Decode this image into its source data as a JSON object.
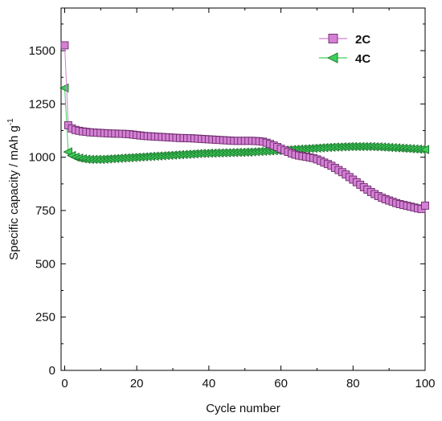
{
  "chart_data": {
    "type": "scatter",
    "xlabel": "Cycle number",
    "ylabel_main": "Specific capacity / mAh g",
    "ylabel_sup": "-1",
    "xlim": [
      -1,
      100
    ],
    "ylim": [
      0,
      1700
    ],
    "xticks": [
      0,
      20,
      40,
      60,
      80,
      100
    ],
    "yticks": [
      0,
      250,
      500,
      750,
      1000,
      1250,
      1500
    ],
    "legend_position": "top-right",
    "series": [
      {
        "name": "2C",
        "color": "#d580d5",
        "stroke": "#6a2a6a",
        "marker": "square",
        "x": [
          0,
          1,
          2,
          3,
          4,
          5,
          6,
          7,
          8,
          9,
          10,
          11,
          12,
          13,
          14,
          15,
          16,
          17,
          18,
          19,
          20,
          21,
          22,
          23,
          24,
          25,
          26,
          27,
          28,
          29,
          30,
          31,
          32,
          33,
          34,
          35,
          36,
          37,
          38,
          39,
          40,
          41,
          42,
          43,
          44,
          45,
          46,
          47,
          48,
          49,
          50,
          51,
          52,
          53,
          54,
          55,
          56,
          57,
          58,
          59,
          60,
          61,
          62,
          63,
          64,
          65,
          66,
          67,
          68,
          69,
          70,
          71,
          72,
          73,
          74,
          75,
          76,
          77,
          78,
          79,
          80,
          81,
          82,
          83,
          84,
          85,
          86,
          87,
          88,
          89,
          90,
          91,
          92,
          93,
          94,
          95,
          96,
          97,
          98,
          99,
          100
        ],
        "y": [
          1525,
          1150,
          1135,
          1128,
          1124,
          1121,
          1119,
          1117,
          1116,
          1115,
          1114,
          1113,
          1112,
          1111,
          1111,
          1110,
          1110,
          1109,
          1108,
          1106,
          1104,
          1102,
          1100,
          1099,
          1098,
          1097,
          1096,
          1095,
          1094,
          1093,
          1092,
          1091,
          1090,
          1090,
          1089,
          1089,
          1088,
          1087,
          1086,
          1085,
          1084,
          1083,
          1082,
          1081,
          1080,
          1079,
          1078,
          1077,
          1077,
          1077,
          1077,
          1077,
          1077,
          1076,
          1075,
          1073,
          1068,
          1062,
          1055,
          1048,
          1040,
          1032,
          1025,
          1018,
          1012,
          1008,
          1005,
          1002,
          999,
          996,
          990,
          983,
          975,
          968,
          960,
          950,
          940,
          930,
          919,
          907,
          895,
          883,
          871,
          859,
          848,
          837,
          827,
          818,
          810,
          803,
          797,
          791,
          785,
          780,
          776,
          772,
          768,
          764,
          760,
          757,
          773
        ]
      },
      {
        "name": "4C",
        "color": "#3ecf5a",
        "stroke": "#1a6e2a",
        "marker": "triangle-left",
        "x": [
          0,
          1,
          2,
          3,
          4,
          5,
          6,
          7,
          8,
          9,
          10,
          11,
          12,
          13,
          14,
          15,
          16,
          17,
          18,
          19,
          20,
          21,
          22,
          23,
          24,
          25,
          26,
          27,
          28,
          29,
          30,
          31,
          32,
          33,
          34,
          35,
          36,
          37,
          38,
          39,
          40,
          41,
          42,
          43,
          44,
          45,
          46,
          47,
          48,
          49,
          50,
          51,
          52,
          53,
          54,
          55,
          56,
          57,
          58,
          59,
          60,
          61,
          62,
          63,
          64,
          65,
          66,
          67,
          68,
          69,
          70,
          71,
          72,
          73,
          74,
          75,
          76,
          77,
          78,
          79,
          80,
          81,
          82,
          83,
          84,
          85,
          86,
          87,
          88,
          89,
          90,
          91,
          92,
          93,
          94,
          95,
          96,
          97,
          98,
          99,
          100
        ],
        "y": [
          1325,
          1025,
          1008,
          1000,
          996,
          993,
          991,
          990,
          990,
          990,
          990,
          991,
          992,
          993,
          994,
          995,
          996,
          997,
          998,
          999,
          1000,
          1001,
          1002,
          1003,
          1004,
          1005,
          1006,
          1007,
          1008,
          1009,
          1010,
          1011,
          1012,
          1013,
          1014,
          1015,
          1016,
          1017,
          1018,
          1018,
          1019,
          1019,
          1020,
          1020,
          1021,
          1021,
          1022,
          1022,
          1023,
          1023,
          1024,
          1024,
          1025,
          1026,
          1027,
          1028,
          1029,
          1030,
          1031,
          1032,
          1033,
          1034,
          1035,
          1036,
          1037,
          1038,
          1039,
          1040,
          1041,
          1042,
          1043,
          1044,
          1045,
          1046,
          1047,
          1048,
          1048,
          1049,
          1049,
          1050,
          1050,
          1050,
          1050,
          1050,
          1050,
          1050,
          1049,
          1049,
          1048,
          1047,
          1046,
          1045,
          1044,
          1043,
          1042,
          1041,
          1040,
          1039,
          1038,
          1037,
          1036
        ]
      }
    ]
  }
}
